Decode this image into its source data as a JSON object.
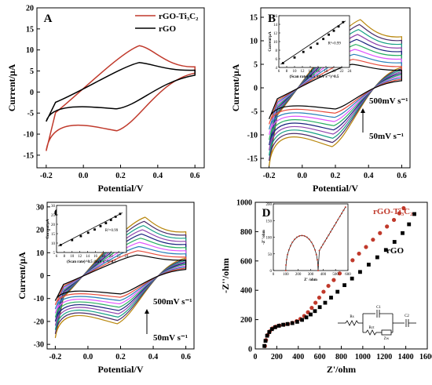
{
  "chart_data": [
    {
      "panel": "A",
      "type": "line",
      "xlabel": "Potential/V",
      "ylabel": "Current/μA",
      "xlim": [
        -0.25,
        0.65
      ],
      "ylim": [
        -18,
        20
      ],
      "xticks": [
        -0.2,
        0.0,
        0.2,
        0.4,
        0.6
      ],
      "xtick_labels": [
        "-0.2",
        "0.0",
        "0.2",
        "0.4",
        "0.6"
      ],
      "yticks": [
        -15,
        -10,
        -5,
        0,
        5,
        10,
        15,
        20
      ],
      "ytick_labels": [
        "-15",
        "-10",
        "-5",
        "0",
        "5",
        "10",
        "15",
        "20"
      ],
      "legend_position": "top-right",
      "series": [
        {
          "name": "rGO-Ti₃C₂",
          "color": "#c0392b",
          "peak_anodic": [
            0.3,
            11.0
          ],
          "peak_cathodic": [
            0.18,
            -9.2
          ],
          "start": [
            -0.2,
            -14.0
          ],
          "end_upper": [
            0.6,
            6.0
          ],
          "end_lower": [
            0.6,
            4.5
          ]
        },
        {
          "name": "rGO",
          "color": "#000000",
          "peak_anodic": [
            0.3,
            7.0
          ],
          "peak_cathodic": [
            0.18,
            -4.0
          ],
          "start": [
            -0.2,
            -7.0
          ],
          "end_upper": [
            0.6,
            5.2
          ],
          "end_lower": [
            0.6,
            4.0
          ]
        }
      ]
    },
    {
      "panel": "B",
      "type": "line",
      "xlabel": "Potential/V",
      "ylabel": "Current/μA",
      "xlim": [
        -0.25,
        0.65
      ],
      "ylim": [
        -17,
        17
      ],
      "xticks": [
        -0.2,
        0.0,
        0.2,
        0.4,
        0.6
      ],
      "xtick_labels": [
        "-0.2",
        "0.0",
        "0.2",
        "0.4",
        "0.6"
      ],
      "yticks": [
        -15,
        -10,
        -5,
        0,
        5,
        10,
        15
      ],
      "ytick_labels": [
        "-15",
        "-10",
        "-5",
        "0",
        "5",
        "10",
        "15"
      ],
      "annotation_high": "500mV s⁻¹",
      "annotation_low": "50mV s⁻¹",
      "curve_colors": [
        "#000000",
        "#e74c3c",
        "#2980b9",
        "#e056fd",
        "#27ae60",
        "#1a237e",
        "#8e44ad",
        "#16a085",
        "#4a2c6b",
        "#b8860b"
      ],
      "peak_anodic_range": [
        5.0,
        14.5
      ],
      "peak_cathodic_range": [
        -4.5,
        -12.5
      ],
      "inset": {
        "xlabel": "(Scan rate)^0.5 /(mV s⁻¹)^0.5",
        "ylabel": "Current/μA",
        "annotation": "R²=0.99",
        "xlim": [
          6,
          24
        ],
        "ylim": [
          4,
          16
        ],
        "xticks": [
          6,
          8,
          10,
          12,
          14,
          16,
          18,
          20,
          22,
          24
        ],
        "yticks": [
          4,
          6,
          8,
          10,
          12,
          14,
          16
        ],
        "x": [
          7.07,
          10.0,
          12.25,
          14.14,
          15.81,
          17.32,
          18.71,
          20.0,
          21.21,
          22.36
        ],
        "y": [
          5.0,
          6.3,
          7.6,
          8.6,
          9.5,
          10.6,
          11.6,
          12.5,
          13.5,
          14.5
        ]
      }
    },
    {
      "panel": "C",
      "type": "line",
      "xlabel": "Potential/V",
      "ylabel": "Current/μA",
      "xlim": [
        -0.25,
        0.65
      ],
      "ylim": [
        -32,
        32
      ],
      "xticks": [
        -0.2,
        0.0,
        0.2,
        0.4,
        0.6
      ],
      "xtick_labels": [
        "-0.2",
        "0.0",
        "0.2",
        "0.4",
        "0.6"
      ],
      "yticks": [
        -30,
        -20,
        -10,
        0,
        10,
        20,
        30
      ],
      "ytick_labels": [
        "-30",
        "-20",
        "-10",
        "0",
        "10",
        "20",
        "30"
      ],
      "annotation_high": "500mV s⁻¹",
      "annotation_low": "50mV s⁻¹",
      "curve_colors": [
        "#000000",
        "#e74c3c",
        "#2980b9",
        "#e056fd",
        "#27ae60",
        "#1a237e",
        "#8e44ad",
        "#16a085",
        "#4a2c6b",
        "#b8860b"
      ],
      "peak_anodic_range": [
        9.0,
        25.5
      ],
      "peak_cathodic_range": [
        -8.0,
        -21.0
      ],
      "inset": {
        "xlabel": "(Scan rate)^0.5 /(mV s⁻¹)^0.5",
        "ylabel": "Current/μA",
        "annotation": "R²=0.99",
        "xlim": [
          6,
          24
        ],
        "ylim": [
          5,
          30
        ],
        "xticks": [
          6,
          8,
          10,
          12,
          14,
          16,
          18,
          20,
          22,
          24
        ],
        "yticks": [
          5,
          10,
          15,
          20,
          25,
          30
        ],
        "x": [
          7.07,
          10.0,
          12.25,
          14.14,
          15.81,
          17.32,
          18.71,
          20.0,
          21.21,
          22.36
        ],
        "y": [
          9.0,
          11.6,
          13.7,
          15.5,
          17.2,
          19.0,
          20.6,
          22.3,
          24.0,
          25.5
        ]
      }
    },
    {
      "panel": "D",
      "type": "scatter",
      "xlabel": "Z'/ohm",
      "ylabel": "-Z''/ohm",
      "xlim": [
        0,
        1600
      ],
      "ylim": [
        0,
        1000
      ],
      "xticks": [
        0,
        200,
        400,
        600,
        800,
        1000,
        1200,
        1400,
        1600
      ],
      "xtick_labels": [
        "0",
        "200",
        "400",
        "600",
        "800",
        "1000",
        "1200",
        "1400",
        "1600"
      ],
      "yticks": [
        0,
        200,
        400,
        600,
        800,
        1000
      ],
      "ytick_labels": [
        "0",
        "200",
        "400",
        "600",
        "800",
        "1000"
      ],
      "series": [
        {
          "name": "rGO-Ti₃C₂",
          "color": "#c0392b",
          "marker": "circle",
          "x": [
            90,
            100,
            115,
            135,
            160,
            190,
            225,
            265,
            305,
            345,
            385,
            420,
            455,
            490,
            525,
            560,
            595,
            635,
            680,
            730,
            785,
            845,
            905,
            965,
            1030,
            1095,
            1160,
            1225,
            1290,
            1340,
            1380
          ],
          "y": [
            20,
            60,
            95,
            120,
            140,
            152,
            160,
            165,
            170,
            178,
            190,
            205,
            225,
            250,
            280,
            315,
            350,
            390,
            430,
            470,
            515,
            560,
            605,
            650,
            695,
            745,
            790,
            835,
            880,
            925,
            960
          ]
        },
        {
          "name": "rGO",
          "color": "#000000",
          "marker": "square",
          "x": [
            85,
            95,
            110,
            130,
            155,
            185,
            220,
            260,
            300,
            345,
            390,
            435,
            475,
            515,
            555,
            600,
            650,
            705,
            765,
            830,
            900,
            975,
            1055,
            1135,
            1215,
            1295,
            1370,
            1430,
            1480
          ],
          "y": [
            20,
            55,
            90,
            115,
            135,
            148,
            158,
            165,
            170,
            176,
            185,
            198,
            215,
            235,
            258,
            285,
            315,
            350,
            390,
            435,
            480,
            525,
            575,
            625,
            675,
            730,
            790,
            850,
            920
          ]
        }
      ],
      "inset": {
        "xlabel": "Z' /ohm",
        "ylabel": "-Z''/ohm",
        "xticks": [
          0,
          100,
          200,
          300,
          400,
          500,
          600
        ],
        "yticks": [
          0,
          50,
          100,
          150,
          200
        ],
        "xlim": [
          0,
          600
        ],
        "ylim": [
          0,
          200
        ]
      },
      "circuit_labels": [
        "Rs",
        "C1",
        "Rct",
        "Zw",
        "C2"
      ]
    }
  ]
}
